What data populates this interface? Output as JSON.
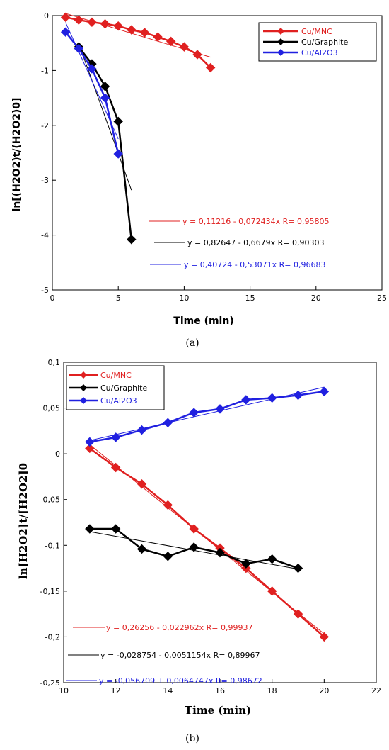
{
  "chart_data": [
    {
      "type": "line",
      "panel": "(a)",
      "xlabel": "Time (min)",
      "ylabel": "ln[(H2O2)t/(H2O2)0]",
      "xlim": [
        0,
        25
      ],
      "ylim": [
        -5,
        0
      ],
      "xticks": [
        "0",
        "5",
        "10",
        "15",
        "20",
        "25"
      ],
      "yticks": [
        "0",
        "-1",
        "-2",
        "-3",
        "-4",
        "-5"
      ],
      "legend": "top-right",
      "series": [
        {
          "name": "Cu/MNC",
          "color": "#e02020",
          "x": [
            1,
            2,
            3,
            4,
            5,
            6,
            7,
            8,
            9,
            10,
            11,
            12
          ],
          "y": [
            -0.03,
            -0.08,
            -0.12,
            -0.15,
            -0.19,
            -0.26,
            -0.31,
            -0.39,
            -0.47,
            -0.57,
            -0.71,
            -0.95
          ]
        },
        {
          "name": "Cu/Graphite",
          "color": "#000000",
          "x": [
            2,
            3,
            4,
            5,
            6
          ],
          "y": [
            -0.57,
            -0.88,
            -1.29,
            -1.93,
            -4.08
          ]
        },
        {
          "name": "Cu/Al2O3",
          "color": "#2020e0",
          "x": [
            1,
            2,
            3,
            4,
            5
          ],
          "y": [
            -0.3,
            -0.6,
            -0.97,
            -1.5,
            -2.52
          ]
        }
      ],
      "fits": [
        {
          "label": "y = 0,11216 - 0,072434x   R= 0,95805",
          "color": "#e02020",
          "a": 0.11216,
          "b": -0.072434,
          "x": [
            1,
            12
          ]
        },
        {
          "label": "y = 0,82647 - 0,6679x   R= 0,90303",
          "color": "#000000",
          "a": 0.82647,
          "b": -0.6679,
          "x": [
            2,
            6
          ]
        },
        {
          "label": "y = 0,40724 - 0,53071x   R= 0,96683",
          "color": "#2020e0",
          "a": 0.40724,
          "b": -0.53071,
          "x": [
            1,
            5
          ]
        }
      ]
    },
    {
      "type": "line",
      "panel": "(b)",
      "xlabel": "Time (min)",
      "ylabel": "ln[H2O2]t/[H2O2]0",
      "xlim": [
        10,
        22
      ],
      "ylim": [
        -0.25,
        0.1
      ],
      "xticks": [
        "10",
        "12",
        "14",
        "16",
        "18",
        "20",
        "22"
      ],
      "yticks": [
        "0,1",
        "0,05",
        "0",
        "-0,05",
        "-0,1",
        "-0,15",
        "-0,2",
        "-0,25"
      ],
      "legend": "top-left",
      "series": [
        {
          "name": "Cu/MNC",
          "color": "#e02020",
          "x": [
            11,
            12,
            13,
            14,
            15,
            16,
            17,
            18,
            19,
            20
          ],
          "y": [
            0.006,
            -0.015,
            -0.033,
            -0.056,
            -0.082,
            -0.103,
            -0.125,
            -0.15,
            -0.175,
            -0.2
          ]
        },
        {
          "name": "Cu/Graphite",
          "color": "#000000",
          "x": [
            11,
            12,
            13,
            14,
            15,
            16,
            17,
            18,
            19
          ],
          "y": [
            -0.082,
            -0.082,
            -0.104,
            -0.112,
            -0.102,
            -0.108,
            -0.12,
            -0.115,
            -0.125
          ]
        },
        {
          "name": "Cu/Al2O3",
          "color": "#2020e0",
          "x": [
            11,
            12,
            13,
            14,
            15,
            16,
            17,
            18,
            19,
            20
          ],
          "y": [
            0.013,
            0.018,
            0.026,
            0.034,
            0.045,
            0.049,
            0.059,
            0.061,
            0.064,
            0.068
          ]
        }
      ],
      "fits": [
        {
          "label": "y = 0,26256 - 0,022962x   R= 0,99937",
          "color": "#e02020",
          "a": 0.26256,
          "b": -0.022962,
          "x": [
            11,
            20
          ]
        },
        {
          "label": "y = -0,028754 - 0,0051154x   R= 0,89967",
          "color": "#000000",
          "a": -0.028754,
          "b": -0.0051154,
          "x": [
            11,
            19
          ]
        },
        {
          "label": "y = -0,056709 + 0,0064747x   R= 0,98672",
          "color": "#2020e0",
          "a": -0.056709,
          "b": 0.0064747,
          "x": [
            11,
            20
          ]
        }
      ]
    }
  ]
}
